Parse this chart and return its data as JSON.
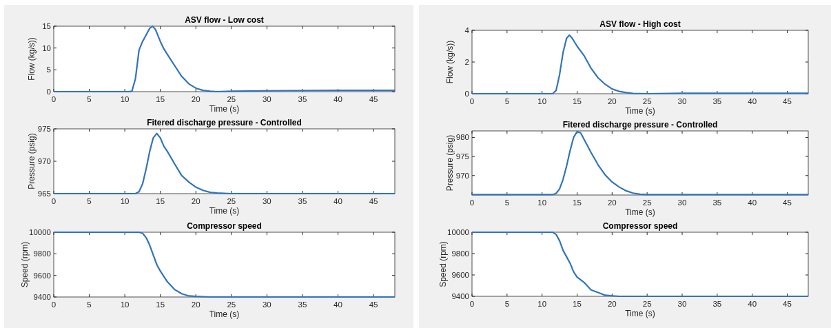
{
  "chart_data": [
    {
      "type": "line",
      "title": "ASV flow - Low cost",
      "xlabel": "Time (s)",
      "ylabel": "Flow (kg/s))",
      "xlim": [
        0,
        48
      ],
      "xticks": [
        0,
        5,
        10,
        15,
        20,
        25,
        30,
        35,
        40,
        45
      ],
      "ylim": [
        0,
        15
      ],
      "yticks": [
        0,
        5,
        10,
        15
      ],
      "grid": false,
      "marker": "none",
      "line_style": "solid",
      "series": [
        {
          "color": "#3074bd",
          "x": [
            0,
            10.5,
            11,
            11.5,
            12,
            12.5,
            13,
            13.5,
            13.9,
            14.3,
            15,
            15.5,
            16,
            17,
            18,
            19,
            20,
            21,
            22,
            23,
            25,
            30,
            40,
            48
          ],
          "values": [
            0,
            0,
            0.1,
            3,
            9.5,
            11.5,
            13,
            14.5,
            15,
            14.3,
            11.5,
            9.8,
            8.5,
            6,
            3.5,
            1.8,
            0.8,
            0.3,
            0.1,
            0,
            0.1,
            0.2,
            0.3,
            0.3
          ]
        }
      ]
    },
    {
      "type": "line",
      "title": "Fitered discharge pressure - Controlled",
      "xlabel": "Time (s)",
      "ylabel": "Pressure (psig)",
      "xlim": [
        0,
        48
      ],
      "xticks": [
        0,
        5,
        10,
        15,
        20,
        25,
        30,
        35,
        40,
        45
      ],
      "ylim": [
        965,
        975
      ],
      "yticks": [
        965,
        970,
        975
      ],
      "grid": false,
      "marker": "none",
      "line_style": "solid",
      "series": [
        {
          "color": "#3074bd",
          "x": [
            0,
            11.5,
            12,
            12.5,
            13,
            13.5,
            14,
            14.5,
            15,
            15.5,
            16,
            17,
            18,
            19,
            20,
            21,
            22,
            23,
            25,
            48
          ],
          "values": [
            965,
            965,
            965.3,
            966.5,
            968.8,
            971.5,
            973.6,
            974.3,
            973.6,
            972.3,
            971.5,
            969.6,
            967.8,
            966.8,
            966,
            965.5,
            965.2,
            965.1,
            965,
            965
          ]
        }
      ]
    },
    {
      "type": "line",
      "title": "Compressor speed",
      "xlabel": "Time (s)",
      "ylabel": "Speed (rpm)",
      "xlim": [
        0,
        48
      ],
      "xticks": [
        0,
        5,
        10,
        15,
        20,
        25,
        30,
        35,
        40,
        45
      ],
      "ylim": [
        9400,
        10000
      ],
      "yticks": [
        9400,
        9600,
        9800,
        10000
      ],
      "grid": false,
      "marker": "none",
      "line_style": "solid",
      "series": [
        {
          "color": "#3074bd",
          "x": [
            0,
            12,
            12.5,
            13,
            13.5,
            14,
            14.5,
            15,
            16,
            17,
            18,
            19,
            20,
            22,
            48
          ],
          "values": [
            10000,
            10000,
            9990,
            9950,
            9880,
            9790,
            9700,
            9640,
            9540,
            9470,
            9430,
            9410,
            9405,
            9400,
            9400
          ]
        }
      ]
    },
    {
      "type": "line",
      "title": "ASV flow - High cost",
      "xlabel": "Time (s)",
      "ylabel": "Flow (kg/s))",
      "xlim": [
        0,
        48
      ],
      "xticks": [
        0,
        5,
        10,
        15,
        20,
        25,
        30,
        35,
        40,
        45
      ],
      "ylim": [
        0,
        4
      ],
      "yticks": [
        0,
        2,
        4
      ],
      "grid": false,
      "marker": "none",
      "line_style": "solid",
      "series": [
        {
          "color": "#3074bd",
          "x": [
            0,
            11.5,
            12,
            12.5,
            13,
            13.5,
            13.9,
            14.3,
            15,
            16,
            17,
            18,
            19,
            20,
            21,
            22,
            23,
            25,
            30,
            48
          ],
          "values": [
            0,
            0,
            0.2,
            1.2,
            2.6,
            3.5,
            3.7,
            3.5,
            3,
            2.4,
            1.6,
            1,
            0.6,
            0.3,
            0.15,
            0.07,
            0.02,
            0,
            0.03,
            0.03
          ]
        }
      ]
    },
    {
      "type": "line",
      "title": "Fitered discharge pressure - Controlled",
      "xlabel": "Time (s)",
      "ylabel": "Pressure (psig)",
      "xlim": [
        0,
        48
      ],
      "xticks": [
        0,
        5,
        10,
        15,
        20,
        25,
        30,
        35,
        40,
        45
      ],
      "ylim": [
        964.9,
        981.7
      ],
      "yticks": [
        970,
        975,
        980
      ],
      "grid": false,
      "marker": "none",
      "line_style": "solid",
      "series": [
        {
          "color": "#3074bd",
          "x": [
            0,
            11.5,
            12,
            12.5,
            13,
            13.5,
            14,
            14.5,
            15,
            15.5,
            16,
            17,
            18,
            19,
            20,
            21,
            22,
            23,
            24,
            25,
            48
          ],
          "values": [
            965,
            965,
            965.3,
            966.5,
            969,
            972.5,
            976.5,
            980,
            981.5,
            981.2,
            979.5,
            976,
            972.8,
            970.2,
            968.3,
            967,
            966,
            965.4,
            965.1,
            965,
            965
          ]
        }
      ]
    },
    {
      "type": "line",
      "title": "Compressor speed",
      "xlabel": "Time (s)",
      "ylabel": "Speed (rpm)",
      "xlim": [
        0,
        48
      ],
      "xticks": [
        0,
        5,
        10,
        15,
        20,
        25,
        30,
        35,
        40,
        45
      ],
      "ylim": [
        9400,
        10000
      ],
      "yticks": [
        9400,
        9600,
        9800,
        10000
      ],
      "grid": false,
      "marker": "none",
      "line_style": "solid",
      "series": [
        {
          "color": "#3074bd",
          "x": [
            0,
            11.5,
            12,
            12.5,
            13,
            13.5,
            14,
            14.5,
            15,
            16,
            17,
            18,
            19,
            20,
            21,
            48
          ],
          "values": [
            10000,
            10000,
            9980,
            9920,
            9830,
            9770,
            9710,
            9630,
            9580,
            9530,
            9460,
            9435,
            9410,
            9405,
            9400,
            9400
          ]
        }
      ]
    }
  ]
}
